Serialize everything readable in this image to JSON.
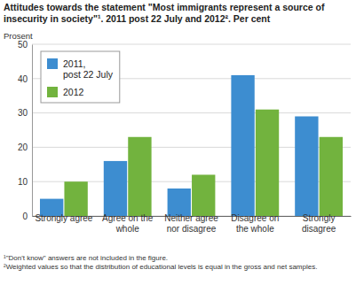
{
  "chart_data": {
    "type": "bar",
    "title": "Attitudes towards the statement \"Most immigrants represent a source of insecurity in society\"¹. 2011 post 22 July and 2012². Per cent",
    "y_label": "Prosent",
    "categories": [
      "Strongly agree",
      "Agree on the whole",
      "Neither agree nor disagree",
      "Disagree on the whole",
      "Strongly disagree"
    ],
    "series": [
      {
        "name": "2011, post 22 July",
        "color": "#3d8dd0",
        "values": [
          5,
          16,
          8,
          41,
          29
        ]
      },
      {
        "name": "2012",
        "color": "#72b33e",
        "values": [
          10,
          23,
          12,
          31,
          23
        ]
      }
    ],
    "ylim": [
      0,
      50
    ],
    "yticks": [
      0,
      10,
      20,
      30,
      40,
      50
    ],
    "grid": true,
    "legend": "top-left",
    "notes": [
      "¹\"Don't know\" answers are not included in the figure.",
      "²Weighted values so that the distribution of educational levels is equal in the gross and net samples."
    ]
  }
}
